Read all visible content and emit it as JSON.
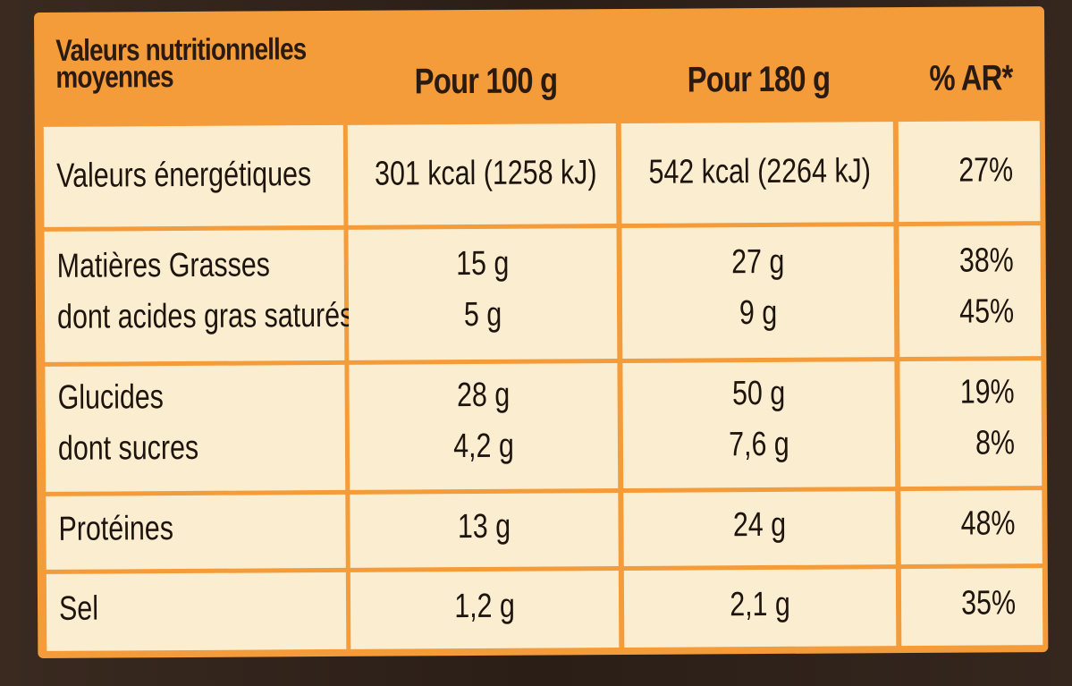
{
  "header": {
    "title": "Valeurs nutritionnelles moyennes",
    "col_100": "Pour 100 g",
    "col_180": "Pour 180 g",
    "col_ar": "% AR*"
  },
  "rows": [
    {
      "label": [
        "Valeurs énergétiques"
      ],
      "per100": [
        "301 kcal (1258 kJ)"
      ],
      "per180": [
        "542 kcal (2264 kJ)"
      ],
      "ar": [
        "27%"
      ]
    },
    {
      "label": [
        "Matières Grasses",
        "dont acides gras saturés"
      ],
      "per100": [
        "15 g",
        "5 g"
      ],
      "per180": [
        "27 g",
        "9 g"
      ],
      "ar": [
        "38%",
        "45%"
      ]
    },
    {
      "label": [
        "Glucides",
        "dont sucres"
      ],
      "per100": [
        "28 g",
        "4,2 g"
      ],
      "per180": [
        "50 g",
        "7,6 g"
      ],
      "ar": [
        "19%",
        "8%"
      ]
    },
    {
      "label": [
        "Protéines"
      ],
      "per100": [
        "13 g"
      ],
      "per180": [
        "24 g"
      ],
      "ar": [
        "48%"
      ]
    },
    {
      "label": [
        "Sel"
      ],
      "per100": [
        "1,2 g"
      ],
      "per180": [
        "2,1 g"
      ],
      "ar": [
        "35%"
      ]
    }
  ],
  "colors": {
    "orange": "#f49b3a",
    "cream": "#fbeed0",
    "background": "#2b1f18"
  }
}
